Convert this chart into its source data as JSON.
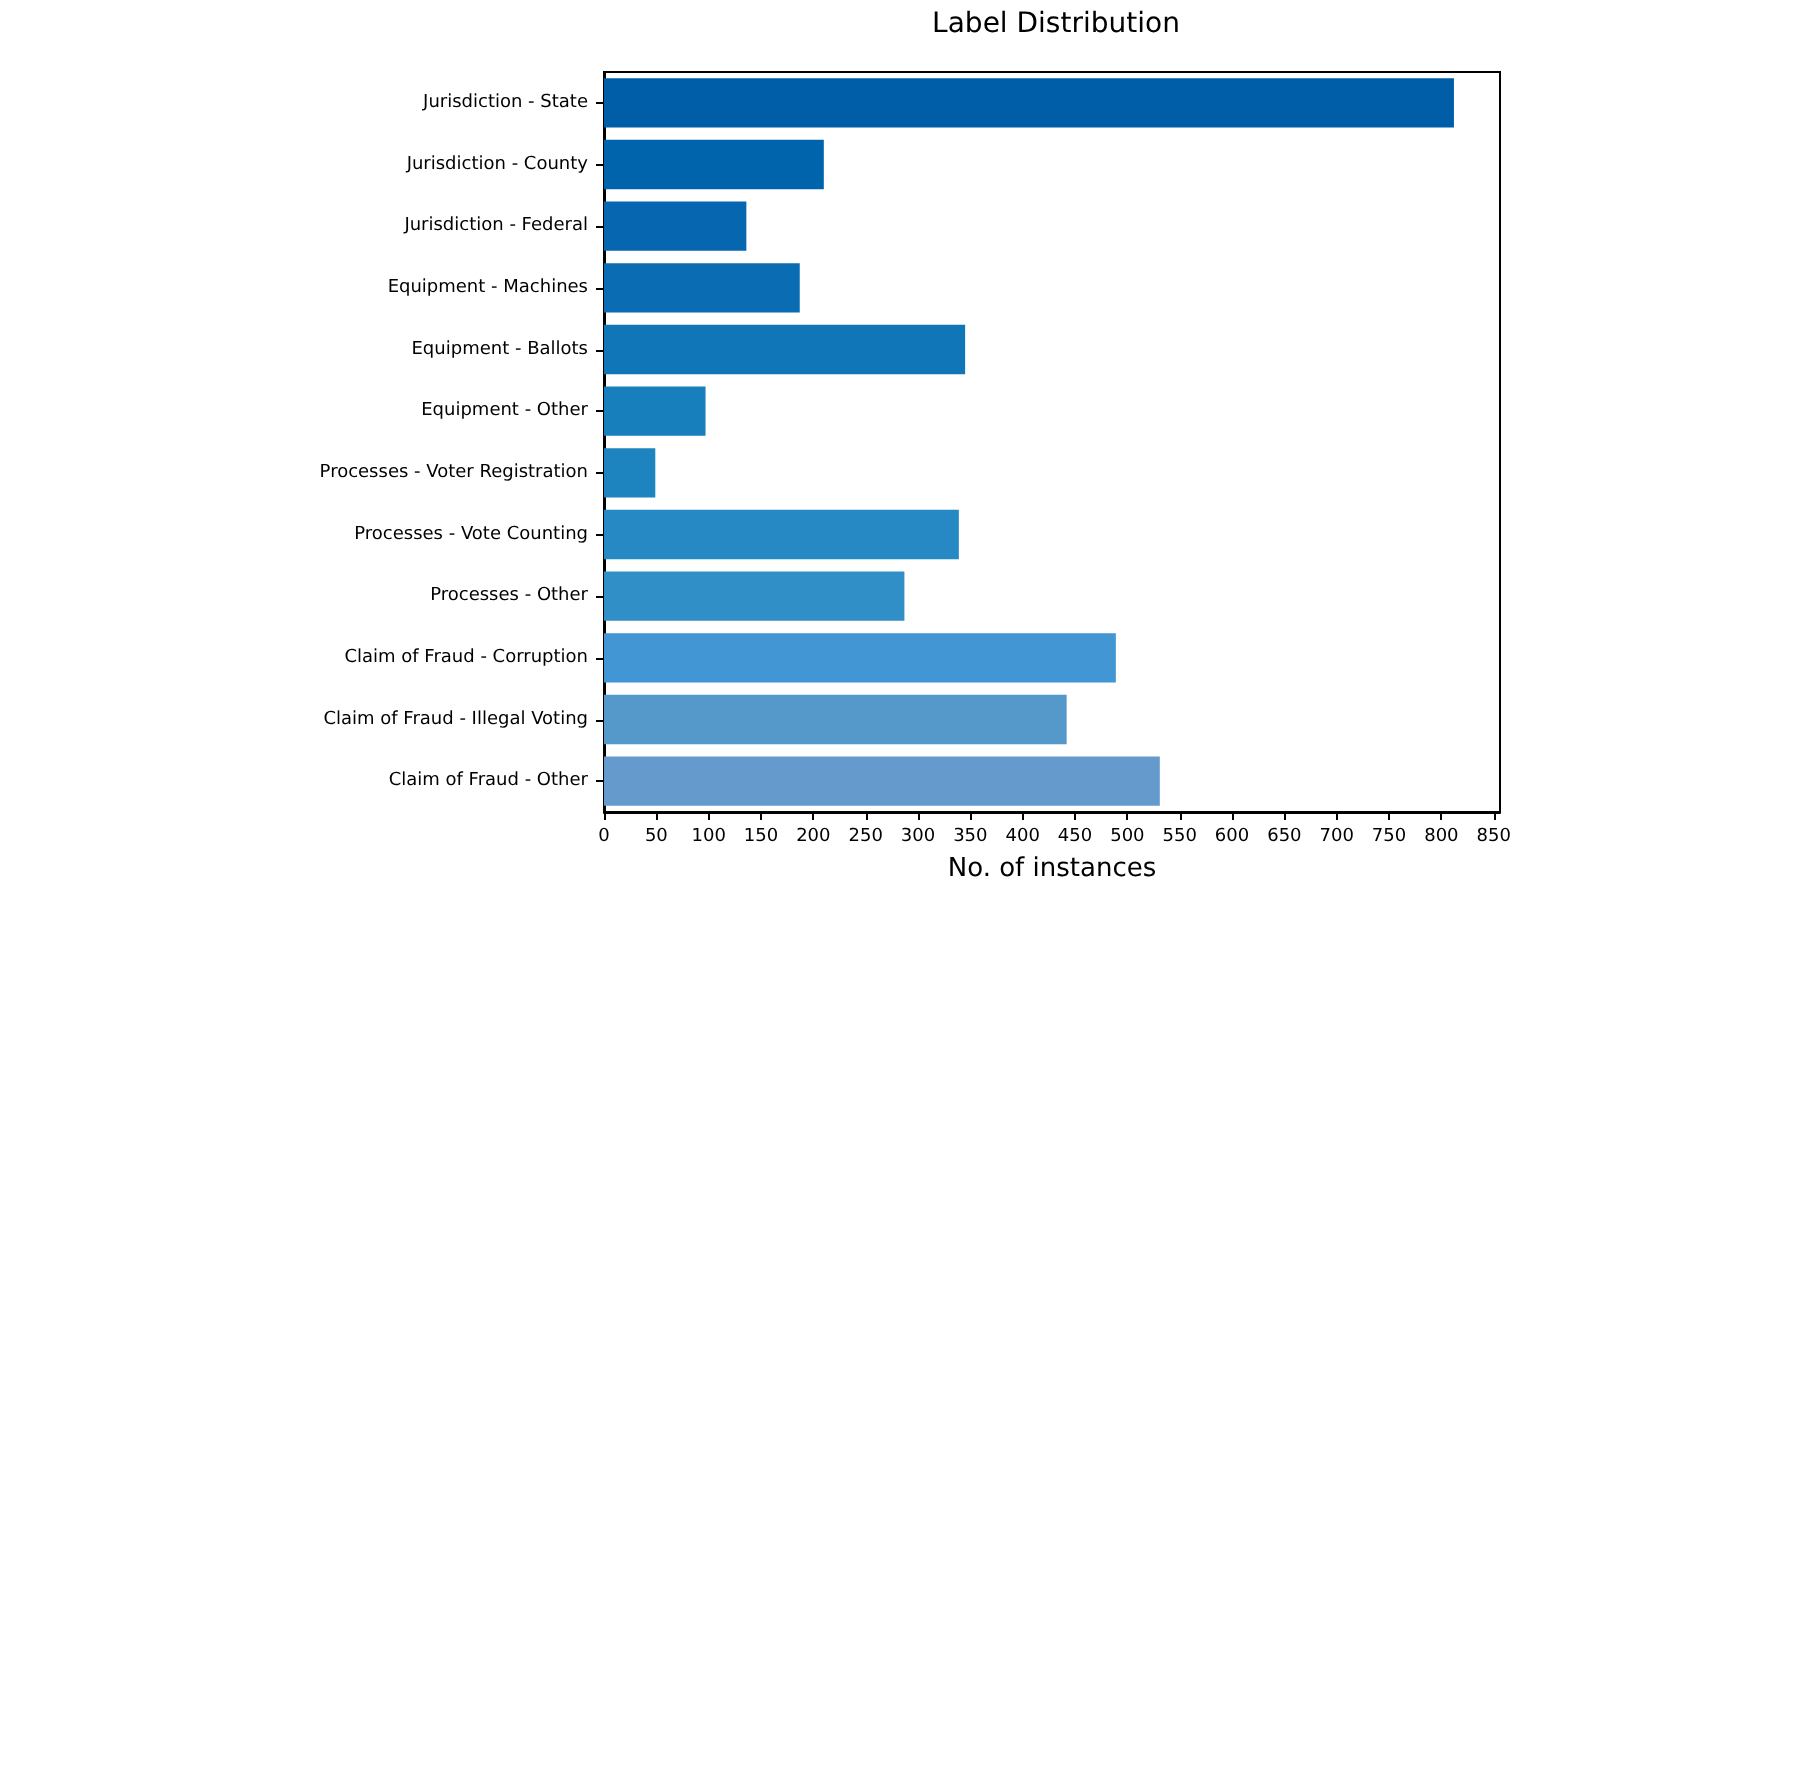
{
  "chart_data": {
    "type": "bar",
    "orientation": "horizontal",
    "title": "Label Distribution",
    "xlabel": "No. of instances",
    "categories": [
      "Jurisdiction - State",
      "Jurisdiction - County",
      "Jurisdiction - Federal",
      "Equipment - Machines",
      "Equipment - Ballots",
      "Equipment - Other",
      "Processes - Voter Registration",
      "Processes - Vote Counting",
      "Processes - Other",
      "Claim of Fraud - Corruption",
      "Claim of Fraud - Illegal Voting",
      "Claim of Fraud - Other"
    ],
    "values": [
      812,
      210,
      136,
      187,
      345,
      97,
      49,
      339,
      287,
      489,
      442,
      531
    ],
    "colors": [
      "#005ea8",
      "#0064ad",
      "#0667b0",
      "#0a6cb3",
      "#1176b8",
      "#187fbd",
      "#1e84c0",
      "#2689c4",
      "#318fc8",
      "#4196d3",
      "#5499c9",
      "#659acd"
    ],
    "xlim": [
      0,
      856
    ],
    "xticks": [
      0,
      50,
      100,
      150,
      200,
      250,
      300,
      350,
      400,
      450,
      500,
      550,
      600,
      650,
      700,
      750,
      800,
      850
    ],
    "grid": false
  }
}
